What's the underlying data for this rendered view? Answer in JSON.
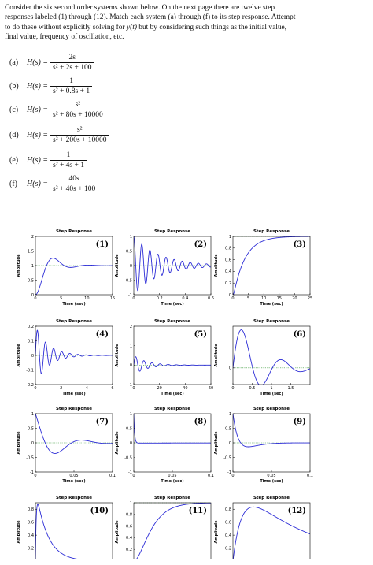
{
  "intro": {
    "line1": "Consider the six second order systems shown below.  On the next page there are twelve step",
    "line2": "responses labeled (1) through (12). Match each system (a) through (f) to its step response. Attempt",
    "line3_pre": "to do these without explicitly solving for ",
    "line3_var": "y(t)",
    "line3_post": " but by considering such things as the initial value,",
    "line4": "final value, frequency of oscillation, etc."
  },
  "systems": [
    {
      "label": "(a)",
      "lhs": "H(s) =",
      "num": "2s",
      "den": "s² + 2s + 100"
    },
    {
      "label": "(b)",
      "lhs": "H(s) =",
      "num": "1",
      "den": "s² + 0.8s + 1"
    },
    {
      "label": "(c)",
      "lhs": "H(s) =",
      "num": "s²",
      "den": "s² + 80s + 10000"
    },
    {
      "label": "(d)",
      "lhs": "H(s) =",
      "num": "s²",
      "den": "s² + 200s + 10000"
    },
    {
      "label": "(e)",
      "lhs": "H(s) =",
      "num": "1",
      "den": "s² + 4s + 1"
    },
    {
      "label": "(f)",
      "lhs": "H(s) =",
      "num": "40s",
      "den": "s² + 40s + 100"
    }
  ],
  "colors": {
    "curve": "#2b2bd6",
    "final": "#3a9a3a",
    "axis": "#000000"
  },
  "chart_data": [
    {
      "type": "line",
      "id": "1",
      "title": "Step Response",
      "panel_label": "(1)",
      "xlabel": "Time (sec)",
      "ylabel": "Amplitude",
      "xlim": [
        0,
        15
      ],
      "ylim": [
        0,
        2
      ],
      "xticks": [
        "0",
        "5",
        "10",
        "15"
      ],
      "yticks": [
        "0",
        "0.5",
        "1",
        "1.5",
        "2"
      ],
      "final_value": 1,
      "model": "second_order",
      "params": {
        "num": [
          1
        ],
        "den": [
          1,
          0.8,
          1
        ]
      }
    },
    {
      "type": "line",
      "id": "2",
      "title": "Step Response",
      "panel_label": "(2)",
      "xlabel": "Time (sec)",
      "ylabel": "Amplitude",
      "xlim": [
        0,
        0.6
      ],
      "ylim": [
        -1,
        1
      ],
      "xticks": [
        "0",
        "0.2",
        "0.4",
        "0.6"
      ],
      "yticks": [
        "-1",
        "-0.5",
        "0",
        "0.5",
        "1"
      ],
      "final_value": 0,
      "model": "second_order",
      "params": {
        "num": [
          1,
          0,
          0
        ],
        "den": [
          1,
          10,
          10000
        ]
      }
    },
    {
      "type": "line",
      "id": "3",
      "title": "Step Response",
      "panel_label": "(3)",
      "xlabel": "Time (sec)",
      "ylabel": "Amplitude",
      "xlim": [
        0,
        25
      ],
      "ylim": [
        0,
        1
      ],
      "xticks": [
        "0",
        "5",
        "10",
        "15",
        "20",
        "25"
      ],
      "yticks": [
        "0",
        "0.2",
        "0.4",
        "0.6",
        "0.8",
        "1"
      ],
      "final_value": 1,
      "model": "second_order",
      "params": {
        "num": [
          1
        ],
        "den": [
          1,
          4,
          1
        ]
      }
    },
    {
      "type": "line",
      "id": "4",
      "title": "Step Response",
      "panel_label": "(4)",
      "xlabel": "Time (sec)",
      "ylabel": "Amplitude",
      "xlim": [
        0,
        6
      ],
      "ylim": [
        -0.2,
        0.2
      ],
      "xticks": [
        "0",
        "2",
        "4",
        "6"
      ],
      "yticks": [
        "-0.2",
        "-0.1",
        "0",
        "0.1",
        "0.2"
      ],
      "final_value": 0,
      "model": "second_order",
      "params": {
        "num": [
          2,
          0
        ],
        "den": [
          1,
          2,
          100
        ]
      }
    },
    {
      "type": "line",
      "id": "5",
      "title": "Step Response",
      "panel_label": "(5)",
      "xlabel": "Time (sec)",
      "ylabel": "Amplitude",
      "xlim": [
        0,
        60
      ],
      "ylim": [
        -1,
        2
      ],
      "xticks": [
        "0",
        "20",
        "40",
        "60"
      ],
      "yticks": [
        "-1",
        "0",
        "1",
        "2"
      ],
      "final_value": 0,
      "model": "second_order",
      "params": {
        "num": [
          0.5,
          0
        ],
        "den": [
          1,
          0.2,
          1
        ]
      }
    },
    {
      "type": "line",
      "id": "6",
      "title": "Step Response",
      "panel_label": "(6)",
      "xlabel": "Time (sec)",
      "ylabel": "Amplitude",
      "xlim": [
        0,
        2
      ],
      "ylim": [
        -0.2,
        0.5
      ],
      "xticks": [
        "0",
        "0.5",
        "1",
        "1.5"
      ],
      "yticks": [
        "0"
      ],
      "final_value": 0,
      "model": "second_order",
      "params": {
        "num": [
          4,
          0
        ],
        "den": [
          1,
          3,
          40
        ]
      }
    },
    {
      "type": "line",
      "id": "7",
      "title": "Step Response",
      "panel_label": "(7)",
      "xlabel": "Time (sec)",
      "ylabel": "Amplitude",
      "xlim": [
        0,
        0.1
      ],
      "ylim": [
        -1,
        1
      ],
      "xticks": [
        "0",
        "0.05",
        "0.1"
      ],
      "yticks": [
        "-1",
        "-0.5",
        "0",
        "0.5",
        "1"
      ],
      "final_value": 0,
      "model": "second_order",
      "params": {
        "num": [
          1,
          0,
          0
        ],
        "den": [
          1,
          80,
          10000
        ]
      }
    },
    {
      "type": "line",
      "id": "8",
      "title": "Step Response",
      "panel_label": "(8)",
      "xlabel": "Time (sec)",
      "ylabel": "Amplitude",
      "xlim": [
        0,
        0.1
      ],
      "ylim": [
        -1,
        1
      ],
      "xticks": [
        "0",
        "0.05",
        "0.1"
      ],
      "yticks": [
        "-1",
        "-0.5",
        "0",
        "0.5",
        "1"
      ],
      "final_value": 0,
      "model": "second_order",
      "params": {
        "num": [
          1,
          0,
          0
        ],
        "den": [
          1,
          1000,
          10000
        ]
      }
    },
    {
      "type": "line",
      "id": "9",
      "title": "Step Response",
      "panel_label": "(9)",
      "xlabel": "Time (sec)",
      "ylabel": "Amplitude",
      "xlim": [
        0,
        0.1
      ],
      "ylim": [
        -1,
        1
      ],
      "xticks": [
        "0",
        "0.05",
        "0.1"
      ],
      "yticks": [
        "-1",
        "-0.5",
        "0",
        "0.5",
        "1"
      ],
      "final_value": 0,
      "model": "second_order",
      "params": {
        "num": [
          1,
          0,
          0
        ],
        "den": [
          1,
          200,
          10000
        ]
      }
    },
    {
      "type": "line",
      "id": "10",
      "title": "Step Response",
      "panel_label": "(10)",
      "xlabel": "Time (sec)",
      "ylabel": "Amplitude",
      "xlim": [
        0,
        2.5
      ],
      "ylim": [
        0,
        0.9
      ],
      "xticks": [
        "0",
        "0.5",
        "1",
        "1.5",
        "2",
        "2.5"
      ],
      "yticks": [
        "0",
        "0.2",
        "0.4",
        "0.6",
        "0.8"
      ],
      "final_value": 0,
      "model": "second_order",
      "params": {
        "num": [
          40,
          0
        ],
        "den": [
          1,
          40,
          100
        ]
      }
    },
    {
      "type": "line",
      "id": "11",
      "title": "Step Response",
      "panel_label": "(11)",
      "xlabel": "Time (sec)",
      "ylabel": "Amplitude",
      "xlim": [
        0,
        8
      ],
      "ylim": [
        0,
        1
      ],
      "xticks": [
        "0",
        "2",
        "4",
        "6",
        "8"
      ],
      "yticks": [
        "0",
        "0.2",
        "0.4",
        "0.6",
        "0.8",
        "1"
      ],
      "final_value": 1,
      "model": "second_order",
      "params": {
        "num": [
          1
        ],
        "den": [
          1,
          2,
          1
        ]
      }
    },
    {
      "type": "line",
      "id": "12",
      "title": "Step Response",
      "panel_label": "(12)",
      "xlabel": "Time (sec)",
      "ylabel": "Amplitude",
      "xlim": [
        0,
        1
      ],
      "ylim": [
        0,
        0.9
      ],
      "xticks": [
        "0",
        "0.5",
        "1"
      ],
      "yticks": [
        "0",
        "0.2",
        "0.4",
        "0.6",
        "0.8"
      ],
      "final_value": 0,
      "model": "second_order",
      "params": {
        "num": [
          10,
          0
        ],
        "den": [
          1,
          10,
          10
        ]
      }
    }
  ]
}
